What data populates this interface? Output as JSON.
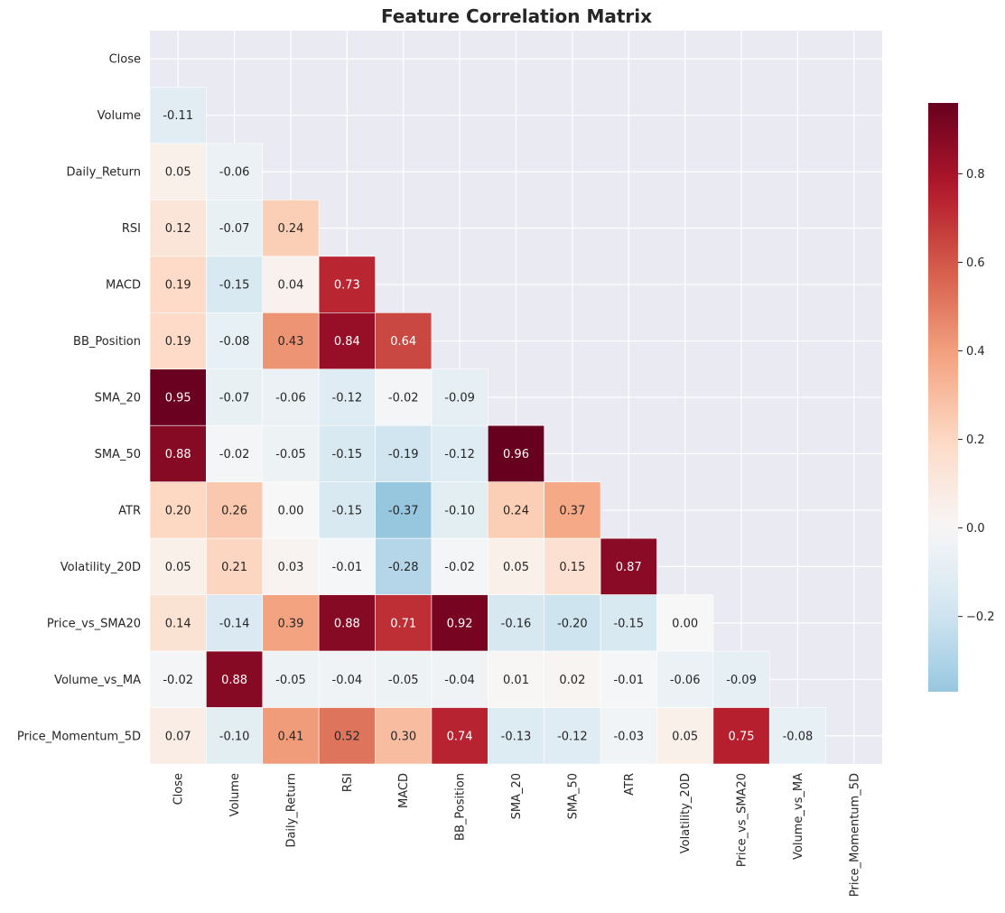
{
  "chart_data": {
    "type": "heatmap",
    "title": "Feature Correlation Matrix",
    "labels": [
      "Close",
      "Volume",
      "Daily_Return",
      "RSI",
      "MACD",
      "BB_Position",
      "SMA_20",
      "SMA_50",
      "ATR",
      "Volatility_20D",
      "Price_vs_SMA20",
      "Volume_vs_MA",
      "Price_Momentum_5D"
    ],
    "mask": "upper-triangle-including-diagonal",
    "lower_triangle_rows": [
      [],
      [
        -0.11
      ],
      [
        0.05,
        -0.06
      ],
      [
        0.12,
        -0.07,
        0.24
      ],
      [
        0.19,
        -0.15,
        0.04,
        0.73
      ],
      [
        0.19,
        -0.08,
        0.43,
        0.84,
        0.64
      ],
      [
        0.95,
        -0.07,
        -0.06,
        -0.12,
        -0.02,
        -0.09
      ],
      [
        0.88,
        -0.02,
        -0.05,
        -0.15,
        -0.19,
        -0.12,
        0.96
      ],
      [
        0.2,
        0.26,
        0.0,
        -0.15,
        -0.37,
        -0.1,
        0.24,
        0.37
      ],
      [
        0.05,
        0.21,
        0.03,
        -0.01,
        -0.28,
        -0.02,
        0.05,
        0.15,
        0.87
      ],
      [
        0.14,
        -0.14,
        0.39,
        0.88,
        0.71,
        0.92,
        -0.16,
        -0.2,
        -0.15,
        -0.0
      ],
      [
        -0.02,
        0.88,
        -0.05,
        -0.04,
        -0.05,
        -0.04,
        0.01,
        0.02,
        -0.01,
        -0.06,
        -0.09
      ],
      [
        0.07,
        -0.1,
        0.41,
        0.52,
        0.3,
        0.74,
        -0.13,
        -0.12,
        -0.03,
        0.05,
        0.75,
        -0.08
      ]
    ],
    "colorbar": {
      "cmap": "RdBu_r",
      "center": 0,
      "vmin": -0.37,
      "vmax": 0.96,
      "ticks": [
        -0.2,
        0.0,
        0.2,
        0.4,
        0.6,
        0.8
      ],
      "tick_labels": [
        "−0.2",
        "0.0",
        "0.2",
        "0.4",
        "0.6",
        "0.8"
      ]
    },
    "grid": true,
    "annotations": true,
    "colors": {
      "background": "#eaeaf2",
      "gridline": "#ffffff",
      "text_dark": "#262626",
      "text_light": "#ffffff"
    }
  }
}
